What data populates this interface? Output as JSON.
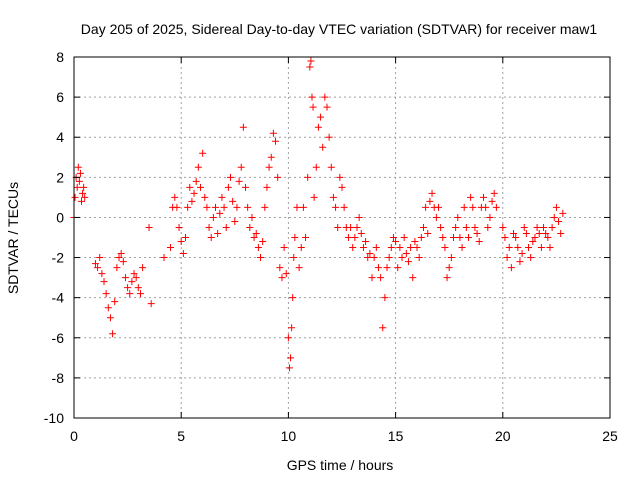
{
  "chart_data": {
    "type": "scatter",
    "title": "Day 205 of 2025, Sidereal Day-to-day VTEC variation (SDTVAR) for receiver maw1",
    "xlabel": "GPS time / hours",
    "ylabel": "SDTVAR / TECUs",
    "xlim": [
      0,
      25
    ],
    "ylim": [
      -10,
      8
    ],
    "xticks": [
      0,
      5,
      10,
      15,
      20,
      25
    ],
    "yticks": [
      -10,
      -8,
      -6,
      -4,
      -2,
      0,
      2,
      4,
      6,
      8
    ],
    "grid": true,
    "marker": "+",
    "marker_color": "#ff0000",
    "series": [
      {
        "name": "SDTVAR",
        "x": [
          0.0,
          0.05,
          0.1,
          0.15,
          0.2,
          0.25,
          0.3,
          0.35,
          0.4,
          0.45,
          0.5,
          1.0,
          1.1,
          1.2,
          1.3,
          1.4,
          1.5,
          1.6,
          1.7,
          1.8,
          1.9,
          2.0,
          2.1,
          2.2,
          2.3,
          2.4,
          2.5,
          2.6,
          2.7,
          2.8,
          2.9,
          3.0,
          3.1,
          3.2,
          3.5,
          3.6,
          4.2,
          4.5,
          4.6,
          4.7,
          4.8,
          4.9,
          5.0,
          5.1,
          5.2,
          5.3,
          5.4,
          5.5,
          5.6,
          5.7,
          5.8,
          5.9,
          6.0,
          6.1,
          6.2,
          6.3,
          6.4,
          6.5,
          6.6,
          6.7,
          6.8,
          6.9,
          7.0,
          7.1,
          7.2,
          7.3,
          7.4,
          7.5,
          7.6,
          7.7,
          7.8,
          7.9,
          8.0,
          8.1,
          8.2,
          8.3,
          8.4,
          8.5,
          8.6,
          8.7,
          8.8,
          8.9,
          9.0,
          9.1,
          9.2,
          9.3,
          9.4,
          9.5,
          9.6,
          9.7,
          9.8,
          9.9,
          10.0,
          10.05,
          10.1,
          10.15,
          10.2,
          10.25,
          10.3,
          10.4,
          10.5,
          10.6,
          10.7,
          10.8,
          10.9,
          11.0,
          11.05,
          11.1,
          11.15,
          11.2,
          11.3,
          11.4,
          11.5,
          11.6,
          11.7,
          11.8,
          11.9,
          12.0,
          12.1,
          12.2,
          12.3,
          12.4,
          12.5,
          12.6,
          12.7,
          12.8,
          12.9,
          13.0,
          13.1,
          13.2,
          13.3,
          13.4,
          13.5,
          13.6,
          13.7,
          13.8,
          13.9,
          14.0,
          14.1,
          14.2,
          14.3,
          14.4,
          14.5,
          14.6,
          14.7,
          14.8,
          14.9,
          15.0,
          15.1,
          15.2,
          15.3,
          15.4,
          15.5,
          15.6,
          15.7,
          15.8,
          15.9,
          16.0,
          16.1,
          16.2,
          16.3,
          16.4,
          16.5,
          16.6,
          16.7,
          16.8,
          16.9,
          17.0,
          17.1,
          17.2,
          17.3,
          17.4,
          17.5,
          17.6,
          17.7,
          17.8,
          17.9,
          18.0,
          18.1,
          18.2,
          18.3,
          18.4,
          18.5,
          18.6,
          18.7,
          18.8,
          18.9,
          19.0,
          19.1,
          19.2,
          19.3,
          19.4,
          19.5,
          19.6,
          19.7,
          20.0,
          20.1,
          20.2,
          20.3,
          20.4,
          20.5,
          20.6,
          20.7,
          20.8,
          20.9,
          21.0,
          21.1,
          21.2,
          21.3,
          21.4,
          21.5,
          21.6,
          21.7,
          21.8,
          21.9,
          22.0,
          22.1,
          22.2,
          22.3,
          22.4,
          22.5,
          22.6,
          22.7,
          22.8
        ],
        "y": [
          0.0,
          1.0,
          2.0,
          1.5,
          2.5,
          1.8,
          2.2,
          0.8,
          1.2,
          1.5,
          1.0,
          -2.3,
          -2.5,
          -2.0,
          -2.8,
          -3.2,
          -3.8,
          -4.5,
          -5.0,
          -5.8,
          -4.2,
          -2.5,
          -2.0,
          -1.8,
          -2.2,
          -3.0,
          -3.5,
          -3.8,
          -3.2,
          -2.8,
          -3.0,
          -3.5,
          -3.8,
          -2.5,
          -0.5,
          -4.3,
          -2.0,
          -1.5,
          0.5,
          1.0,
          0.5,
          -0.5,
          -1.2,
          -1.8,
          -1.0,
          0.5,
          1.5,
          0.8,
          1.2,
          1.8,
          2.5,
          1.5,
          3.2,
          1.0,
          0.5,
          -0.5,
          -1.0,
          0.0,
          0.5,
          -0.8,
          0.2,
          1.0,
          0.5,
          -0.5,
          1.5,
          2.0,
          0.8,
          -0.2,
          0.5,
          1.8,
          2.5,
          4.5,
          1.5,
          0.5,
          -0.5,
          0.0,
          -1.0,
          -0.8,
          -1.5,
          -2.0,
          -1.2,
          0.5,
          1.5,
          2.5,
          3.0,
          4.2,
          3.8,
          2.0,
          -2.5,
          -3.0,
          -1.5,
          -2.8,
          -6.0,
          -7.5,
          -7.0,
          -5.5,
          -4.0,
          -2.0,
          -1.0,
          0.5,
          -2.5,
          -1.5,
          0.5,
          -1.0,
          2.0,
          7.5,
          7.8,
          6.0,
          5.5,
          1.0,
          2.5,
          4.5,
          5.0,
          3.5,
          6.0,
          5.5,
          4.0,
          2.5,
          1.0,
          0.5,
          -0.5,
          2.0,
          1.5,
          0.5,
          -0.5,
          -1.0,
          -0.5,
          -1.5,
          -1.0,
          -0.5,
          0.0,
          -0.8,
          -1.5,
          -1.2,
          -2.0,
          -1.8,
          -3.0,
          -2.0,
          -1.5,
          -2.5,
          -3.0,
          -5.5,
          -4.0,
          -2.5,
          -2.0,
          -1.5,
          -1.0,
          -1.2,
          -2.5,
          -1.5,
          -2.0,
          -1.0,
          -1.8,
          -2.2,
          -1.5,
          -3.0,
          -1.2,
          -1.5,
          -2.0,
          -1.0,
          -0.5,
          0.5,
          -0.8,
          0.8,
          1.2,
          0.5,
          0.0,
          0.5,
          -0.5,
          -1.0,
          -1.5,
          -3.0,
          -2.5,
          -2.0,
          -1.0,
          -0.5,
          0.0,
          -1.0,
          -1.5,
          0.5,
          -0.5,
          -1.0,
          1.0,
          0.5,
          -0.5,
          -0.8,
          -1.2,
          0.5,
          1.0,
          0.5,
          -0.5,
          0.0,
          0.8,
          1.2,
          0.5,
          -0.5,
          -1.0,
          -2.0,
          -1.5,
          -2.5,
          -0.8,
          -1.0,
          -1.5,
          -2.2,
          -1.8,
          -0.5,
          -0.8,
          -1.5,
          -2.0,
          -1.2,
          -1.0,
          -0.5,
          -0.8,
          -1.5,
          -0.5,
          -0.8,
          -1.0,
          -1.5,
          -0.5,
          0.0,
          0.5,
          -0.2,
          -0.8,
          0.2
        ]
      }
    ]
  }
}
